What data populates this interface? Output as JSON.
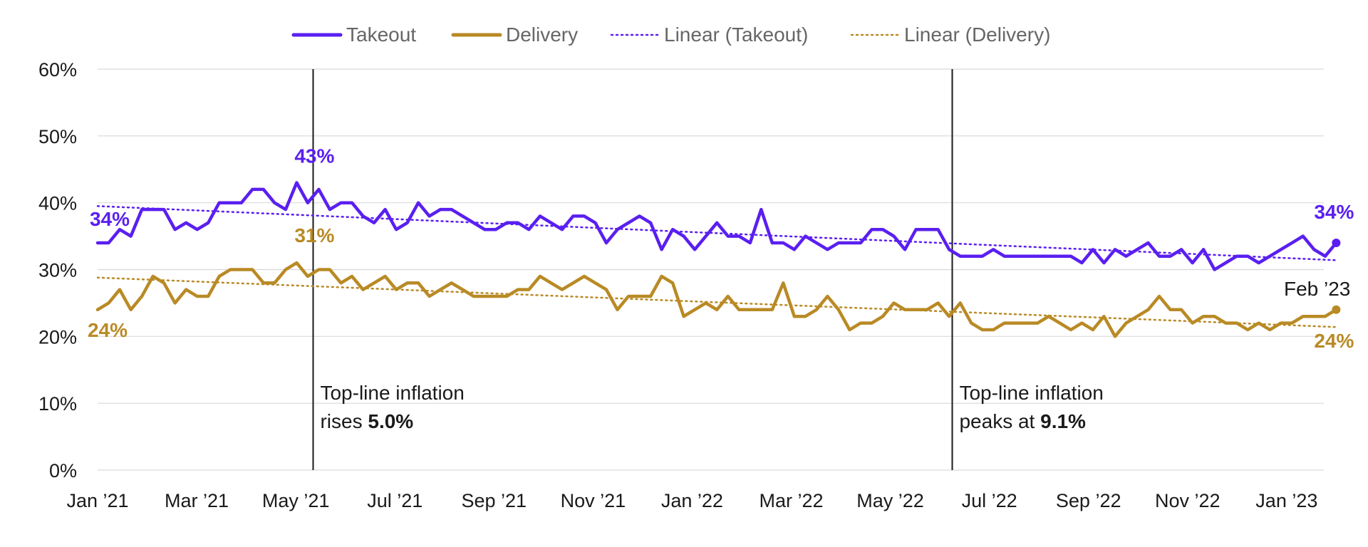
{
  "chart_data": {
    "type": "line",
    "title": "",
    "xlabel": "",
    "ylabel": "",
    "ylim": [
      0,
      60
    ],
    "ytick_labels": [
      "0%",
      "10%",
      "20%",
      "30%",
      "40%",
      "50%",
      "60%"
    ],
    "x_range": [
      0,
      24.75
    ],
    "xtick_labels": [
      "Jan ’21",
      "Mar ’21",
      "May ’21",
      "Jul ’21",
      "Sep ’21",
      "Nov ’21",
      "Jan ’22",
      "Mar ’22",
      "May ’22",
      "Jul ’22",
      "Sep ’22",
      "Nov ’22",
      "Jan ’23"
    ],
    "xtick_months": [
      0,
      2,
      4,
      6,
      8,
      10,
      12,
      14,
      16,
      18,
      20,
      22,
      24
    ],
    "grid": true,
    "legend_position": "top-center",
    "legend": [
      "Takeout",
      "Delivery",
      "Linear (Takeout)",
      "Linear (Delivery)"
    ],
    "colors": {
      "takeout": "#5a1ff0",
      "delivery": "#b98a25",
      "grid": "#d9d9d9",
      "vline": "#1a1a1a"
    },
    "series": [
      {
        "name": "Takeout",
        "color": "#5a1ff0",
        "style": "solid",
        "values": [
          34,
          34,
          36,
          35,
          39,
          39,
          39,
          36,
          37,
          36,
          37,
          40,
          40,
          40,
          42,
          42,
          40,
          39,
          43,
          40,
          42,
          39,
          40,
          40,
          38,
          37,
          39,
          36,
          37,
          40,
          38,
          39,
          39,
          38,
          37,
          36,
          36,
          37,
          37,
          36,
          38,
          37,
          36,
          38,
          38,
          37,
          34,
          36,
          37,
          38,
          37,
          33,
          36,
          35,
          33,
          35,
          37,
          35,
          35,
          34,
          39,
          34,
          34,
          33,
          35,
          34,
          33,
          34,
          34,
          34,
          36,
          36,
          35,
          33,
          36,
          36,
          36,
          33,
          32,
          32,
          32,
          33,
          32,
          32,
          32,
          32,
          32,
          32,
          32,
          31,
          33,
          31,
          33,
          32,
          33,
          34,
          32,
          32,
          33,
          31,
          33,
          30,
          31,
          32,
          32,
          31,
          32,
          33,
          34,
          35,
          33,
          32,
          34
        ]
      },
      {
        "name": "Delivery",
        "color": "#b98a25",
        "style": "solid",
        "values": [
          24,
          25,
          27,
          24,
          26,
          29,
          28,
          25,
          27,
          26,
          26,
          29,
          30,
          30,
          30,
          28,
          28,
          30,
          31,
          29,
          30,
          30,
          28,
          29,
          27,
          28,
          29,
          27,
          28,
          28,
          26,
          27,
          28,
          27,
          26,
          26,
          26,
          26,
          27,
          27,
          29,
          28,
          27,
          28,
          29,
          28,
          27,
          24,
          26,
          26,
          26,
          29,
          28,
          23,
          24,
          25,
          24,
          26,
          24,
          24,
          24,
          24,
          28,
          23,
          23,
          24,
          26,
          24,
          21,
          22,
          22,
          23,
          25,
          24,
          24,
          24,
          25,
          23,
          25,
          22,
          21,
          21,
          22,
          22,
          22,
          22,
          23,
          22,
          21,
          22,
          21,
          23,
          20,
          22,
          23,
          24,
          26,
          24,
          24,
          22,
          23,
          23,
          22,
          22,
          21,
          22,
          21,
          22,
          22,
          23,
          23,
          23,
          24
        ]
      },
      {
        "name": "Linear (Takeout)",
        "color": "#5a1ff0",
        "style": "dotted",
        "trend": [
          39.5,
          31.4
        ]
      },
      {
        "name": "Linear (Delivery)",
        "color": "#b98a25",
        "style": "dotted",
        "trend": [
          28.8,
          21.4
        ]
      }
    ],
    "data_labels": [
      {
        "text": "34%",
        "series": "Takeout",
        "index": 0
      },
      {
        "text": "43%",
        "series": "Takeout",
        "index": 18
      },
      {
        "text": "34%",
        "series": "Takeout",
        "index": 112
      },
      {
        "text": "24%",
        "series": "Delivery",
        "index": 0
      },
      {
        "text": "31%",
        "series": "Delivery",
        "index": 18
      },
      {
        "text": "24%",
        "series": "Delivery",
        "index": 112
      },
      {
        "text": "Feb ’23",
        "series": "Delivery",
        "index": 112
      }
    ],
    "annotations": [
      {
        "month": 4.35,
        "line1": "Top-line inflation",
        "line2_prefix": "rises ",
        "line2_bold": "5.0%"
      },
      {
        "month": 17.25,
        "line1": "Top-line inflation",
        "line2_prefix": "peaks at ",
        "line2_bold": "9.1%"
      }
    ]
  }
}
